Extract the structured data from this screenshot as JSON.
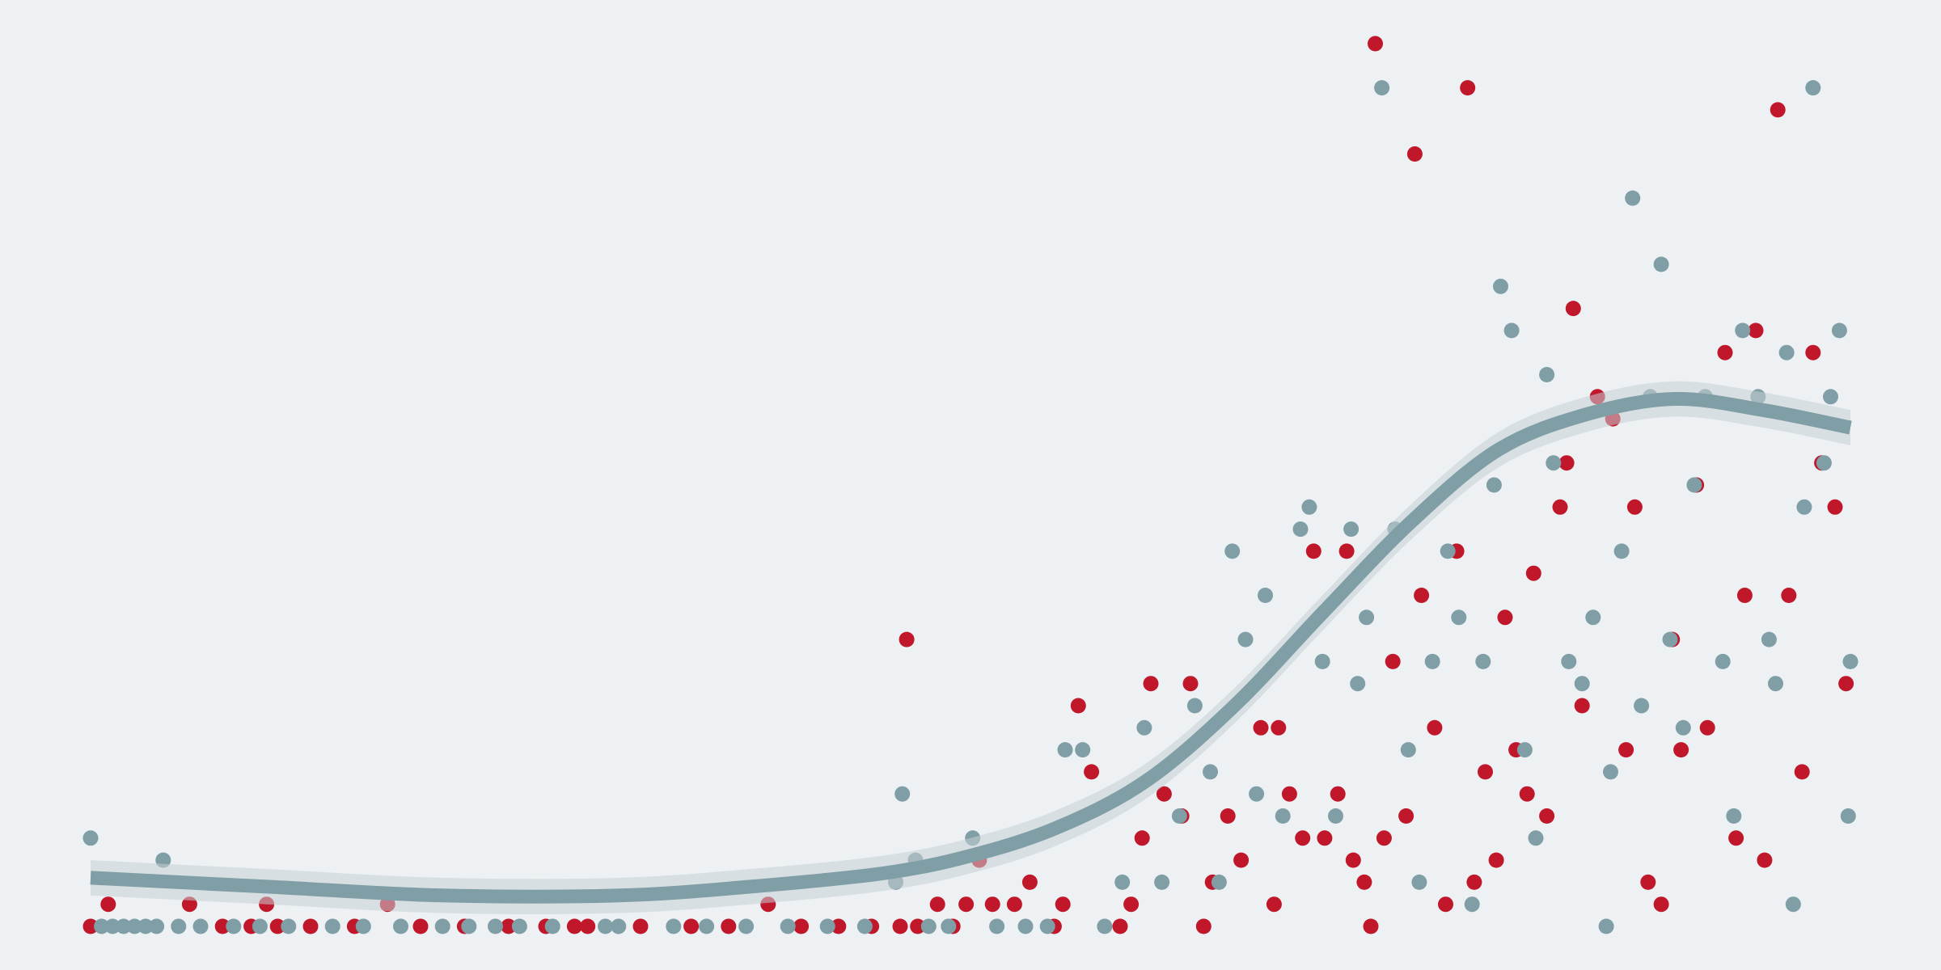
{
  "colors": {
    "background": "#eef1f4",
    "series_a": "#c0182a",
    "series_b": "#7f9ea6",
    "trend": "#7f9ea6",
    "band": "#c5cfd4"
  },
  "chart_data": {
    "type": "scatter",
    "title": "",
    "xlabel": "",
    "ylabel": "",
    "grid": false,
    "legend": "none",
    "xlim": [
      0,
      80
    ],
    "ylim": [
      0,
      40
    ],
    "series": [
      {
        "color": "#c0182a",
        "points": [
          [
            0.0,
            0
          ],
          [
            0.8,
            1
          ],
          [
            4.5,
            1
          ],
          [
            6,
            0
          ],
          [
            7.3,
            0
          ],
          [
            8,
            1
          ],
          [
            8.5,
            0
          ],
          [
            10,
            0
          ],
          [
            12,
            0
          ],
          [
            13.5,
            1
          ],
          [
            15,
            0
          ],
          [
            17,
            0
          ],
          [
            19,
            0
          ],
          [
            20.7,
            0
          ],
          [
            22,
            0
          ],
          [
            22.6,
            0
          ],
          [
            25,
            0
          ],
          [
            27.3,
            0
          ],
          [
            29,
            0
          ],
          [
            30.8,
            1
          ],
          [
            32.3,
            0
          ],
          [
            34,
            0
          ],
          [
            35.5,
            0
          ],
          [
            36.8,
            0
          ],
          [
            37.1,
            13
          ],
          [
            37.6,
            0
          ],
          [
            38.5,
            1
          ],
          [
            39.2,
            0
          ],
          [
            39.8,
            1
          ],
          [
            40.4,
            3
          ],
          [
            41,
            1
          ],
          [
            42,
            1
          ],
          [
            42.7,
            2
          ],
          [
            43.8,
            0
          ],
          [
            44.2,
            1
          ],
          [
            44.9,
            10
          ],
          [
            45.5,
            7
          ],
          [
            46.8,
            0
          ],
          [
            47.3,
            1
          ],
          [
            47.8,
            4
          ],
          [
            48.2,
            11
          ],
          [
            48.8,
            6
          ],
          [
            49.6,
            5
          ],
          [
            50,
            11
          ],
          [
            50.6,
            0
          ],
          [
            51,
            2
          ],
          [
            51.7,
            5
          ],
          [
            52.3,
            3
          ],
          [
            53.2,
            9
          ],
          [
            53.8,
            1
          ],
          [
            54,
            9
          ],
          [
            54.5,
            6
          ],
          [
            55.1,
            4
          ],
          [
            55.6,
            17
          ],
          [
            56.1,
            4
          ],
          [
            56.7,
            6
          ],
          [
            57.1,
            17
          ],
          [
            57.4,
            3
          ],
          [
            57.9,
            2
          ],
          [
            58.2,
            0
          ],
          [
            58.4,
            40
          ],
          [
            58.8,
            4
          ],
          [
            59.2,
            12
          ],
          [
            59.8,
            5
          ],
          [
            60.2,
            35
          ],
          [
            60.5,
            15
          ],
          [
            61.1,
            9
          ],
          [
            61.6,
            1
          ],
          [
            62.1,
            17
          ],
          [
            62.6,
            38
          ],
          [
            62.9,
            2
          ],
          [
            63.4,
            7
          ],
          [
            63.9,
            3
          ],
          [
            64.3,
            14
          ],
          [
            64.8,
            8
          ],
          [
            65.3,
            6
          ],
          [
            65.6,
            16
          ],
          [
            66.2,
            5
          ],
          [
            66.8,
            19
          ],
          [
            67.1,
            21
          ],
          [
            67.4,
            28
          ],
          [
            67.8,
            10
          ],
          [
            68.5,
            24
          ],
          [
            69.2,
            23
          ],
          [
            69.8,
            8
          ],
          [
            70.2,
            19
          ],
          [
            70.8,
            2
          ],
          [
            71.4,
            1
          ],
          [
            71.9,
            13
          ],
          [
            72.3,
            8
          ],
          [
            73,
            20
          ],
          [
            73.5,
            9
          ],
          [
            74.3,
            26
          ],
          [
            74.8,
            4
          ],
          [
            75.2,
            15
          ],
          [
            75.7,
            27
          ],
          [
            76.1,
            3
          ],
          [
            76.7,
            37
          ],
          [
            77.2,
            15
          ],
          [
            77.8,
            7
          ],
          [
            78.3,
            26
          ],
          [
            78.7,
            21
          ],
          [
            79.3,
            19
          ],
          [
            79.8,
            11
          ]
        ]
      },
      {
        "color": "#7f9ea6",
        "points": [
          [
            0.0,
            4
          ],
          [
            0.5,
            0
          ],
          [
            1,
            0
          ],
          [
            1.5,
            0
          ],
          [
            2,
            0
          ],
          [
            2.5,
            0
          ],
          [
            3,
            0
          ],
          [
            3.3,
            3
          ],
          [
            4,
            0
          ],
          [
            5,
            0
          ],
          [
            6.5,
            0
          ],
          [
            7.7,
            0
          ],
          [
            9,
            0
          ],
          [
            11,
            0
          ],
          [
            12.4,
            0
          ],
          [
            14.1,
            0
          ],
          [
            16,
            0
          ],
          [
            17.2,
            0
          ],
          [
            18.4,
            0
          ],
          [
            19.5,
            0
          ],
          [
            21,
            0
          ],
          [
            23.4,
            0
          ],
          [
            24,
            0
          ],
          [
            26.5,
            0
          ],
          [
            28,
            0
          ],
          [
            29.8,
            0
          ],
          [
            31.7,
            0
          ],
          [
            33.5,
            0
          ],
          [
            35.2,
            0
          ],
          [
            36.6,
            2
          ],
          [
            36.9,
            6
          ],
          [
            37.5,
            3
          ],
          [
            38.1,
            0
          ],
          [
            39,
            0
          ],
          [
            40.1,
            4
          ],
          [
            41.2,
            0
          ],
          [
            42.5,
            0
          ],
          [
            43.5,
            0
          ],
          [
            44.3,
            8
          ],
          [
            45.1,
            8
          ],
          [
            46.1,
            0
          ],
          [
            46.9,
            2
          ],
          [
            47.9,
            9
          ],
          [
            48.7,
            2
          ],
          [
            49.5,
            5
          ],
          [
            50.2,
            10
          ],
          [
            50.9,
            7
          ],
          [
            51.3,
            2
          ],
          [
            51.9,
            17
          ],
          [
            52.5,
            13
          ],
          [
            53,
            6
          ],
          [
            53.4,
            15
          ],
          [
            54.2,
            5
          ],
          [
            55,
            18
          ],
          [
            55.4,
            19
          ],
          [
            56,
            12
          ],
          [
            56.6,
            5
          ],
          [
            57.3,
            18
          ],
          [
            57.6,
            11
          ],
          [
            58,
            14
          ],
          [
            58.7,
            38
          ],
          [
            59.3,
            18
          ],
          [
            59.9,
            8
          ],
          [
            60.4,
            2
          ],
          [
            61,
            12
          ],
          [
            61.7,
            17
          ],
          [
            62.2,
            14
          ],
          [
            62.8,
            1
          ],
          [
            63.3,
            12
          ],
          [
            63.8,
            20
          ],
          [
            64.1,
            29
          ],
          [
            64.6,
            27
          ],
          [
            65.2,
            8
          ],
          [
            65.7,
            4
          ],
          [
            66.2,
            25
          ],
          [
            66.5,
            21
          ],
          [
            67.2,
            12
          ],
          [
            67.8,
            11
          ],
          [
            68.3,
            14
          ],
          [
            68.9,
            0
          ],
          [
            69.1,
            7
          ],
          [
            69.6,
            17
          ],
          [
            70.1,
            33
          ],
          [
            70.5,
            10
          ],
          [
            70.9,
            24
          ],
          [
            71.4,
            30
          ],
          [
            71.8,
            13
          ],
          [
            72.4,
            9
          ],
          [
            72.9,
            20
          ],
          [
            73.4,
            24
          ],
          [
            74.2,
            12
          ],
          [
            74.7,
            5
          ],
          [
            75.1,
            27
          ],
          [
            75.8,
            24
          ],
          [
            76.3,
            13
          ],
          [
            76.6,
            11
          ],
          [
            77.1,
            26
          ],
          [
            77.4,
            1
          ],
          [
            77.9,
            19
          ],
          [
            78.3,
            38
          ],
          [
            78.8,
            21
          ],
          [
            79.1,
            24
          ],
          [
            79.5,
            27
          ],
          [
            79.9,
            5
          ],
          [
            80,
            12
          ]
        ]
      }
    ],
    "trend": [
      [
        0,
        2.2
      ],
      [
        8,
        1.8
      ],
      [
        16,
        1.4
      ],
      [
        24,
        1.4
      ],
      [
        30,
        1.8
      ],
      [
        36,
        2.4
      ],
      [
        40,
        3.2
      ],
      [
        44,
        4.5
      ],
      [
        48,
        6.6
      ],
      [
        52,
        10
      ],
      [
        56,
        14.2
      ],
      [
        60,
        18.3
      ],
      [
        64,
        21.6
      ],
      [
        68,
        23.2
      ],
      [
        72,
        23.9
      ],
      [
        76,
        23.4
      ],
      [
        80,
        22.6
      ]
    ],
    "band_width": 0.8
  }
}
